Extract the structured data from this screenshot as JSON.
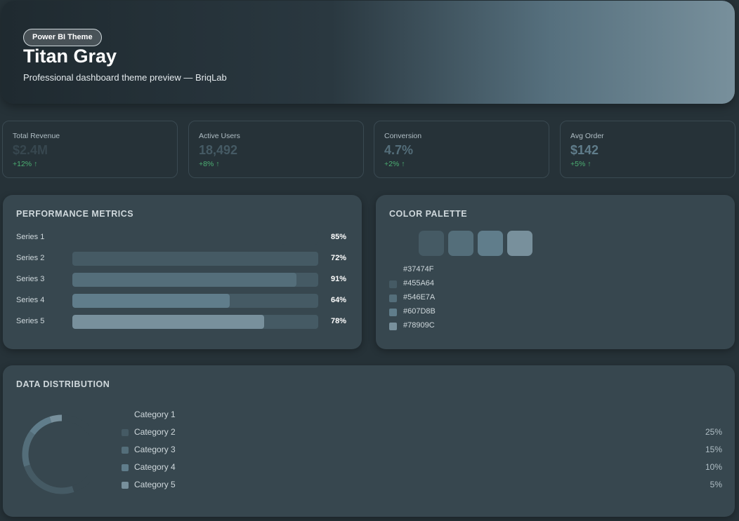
{
  "header": {
    "badge": "Power BI Theme",
    "title": "Titan Gray",
    "subtitle": "Professional dashboard theme preview — BriqLab"
  },
  "kpis": [
    {
      "label": "Total Revenue",
      "value": "$2.4M",
      "delta": "+12% ↑",
      "color": "#37474F"
    },
    {
      "label": "Active Users",
      "value": "18,492",
      "delta": "+8% ↑",
      "color": "#455A64"
    },
    {
      "label": "Conversion",
      "value": "4.7%",
      "delta": "+2% ↑",
      "color": "#546E7A"
    },
    {
      "label": "Avg Order",
      "value": "$142",
      "delta": "+5% ↑",
      "color": "#607D8B"
    }
  ],
  "performance": {
    "title": "PERFORMANCE METRICS",
    "bars": [
      {
        "label": "Series 1",
        "value": 85,
        "display": "85%",
        "color": "#37474F"
      },
      {
        "label": "Series 2",
        "value": 72,
        "display": "72%",
        "color": "#455A64"
      },
      {
        "label": "Series 3",
        "value": 91,
        "display": "91%",
        "color": "#546E7A"
      },
      {
        "label": "Series 4",
        "value": 64,
        "display": "64%",
        "color": "#607D8B"
      },
      {
        "label": "Series 5",
        "value": 78,
        "display": "78%",
        "color": "#78909C"
      }
    ]
  },
  "palette": {
    "title": "COLOR PALETTE",
    "colors": [
      {
        "hex": "#37474F",
        "label": "#37474F"
      },
      {
        "hex": "#455A64",
        "label": "#455A64"
      },
      {
        "hex": "#546E7A",
        "label": "#546E7A"
      },
      {
        "hex": "#607D8B",
        "label": "#607D8B"
      },
      {
        "hex": "#78909C",
        "label": "#78909C"
      }
    ]
  },
  "distribution": {
    "title": "DATA DISTRIBUTION",
    "categories": [
      {
        "label": "Category 1",
        "value": 45,
        "display": "",
        "color": "#37474F"
      },
      {
        "label": "Category 2",
        "value": 25,
        "display": "25%",
        "color": "#455A64"
      },
      {
        "label": "Category 3",
        "value": 15,
        "display": "15%",
        "color": "#546E7A"
      },
      {
        "label": "Category 4",
        "value": 10,
        "display": "10%",
        "color": "#607D8B"
      },
      {
        "label": "Category 5",
        "value": 5,
        "display": "5%",
        "color": "#78909C"
      }
    ]
  }
}
